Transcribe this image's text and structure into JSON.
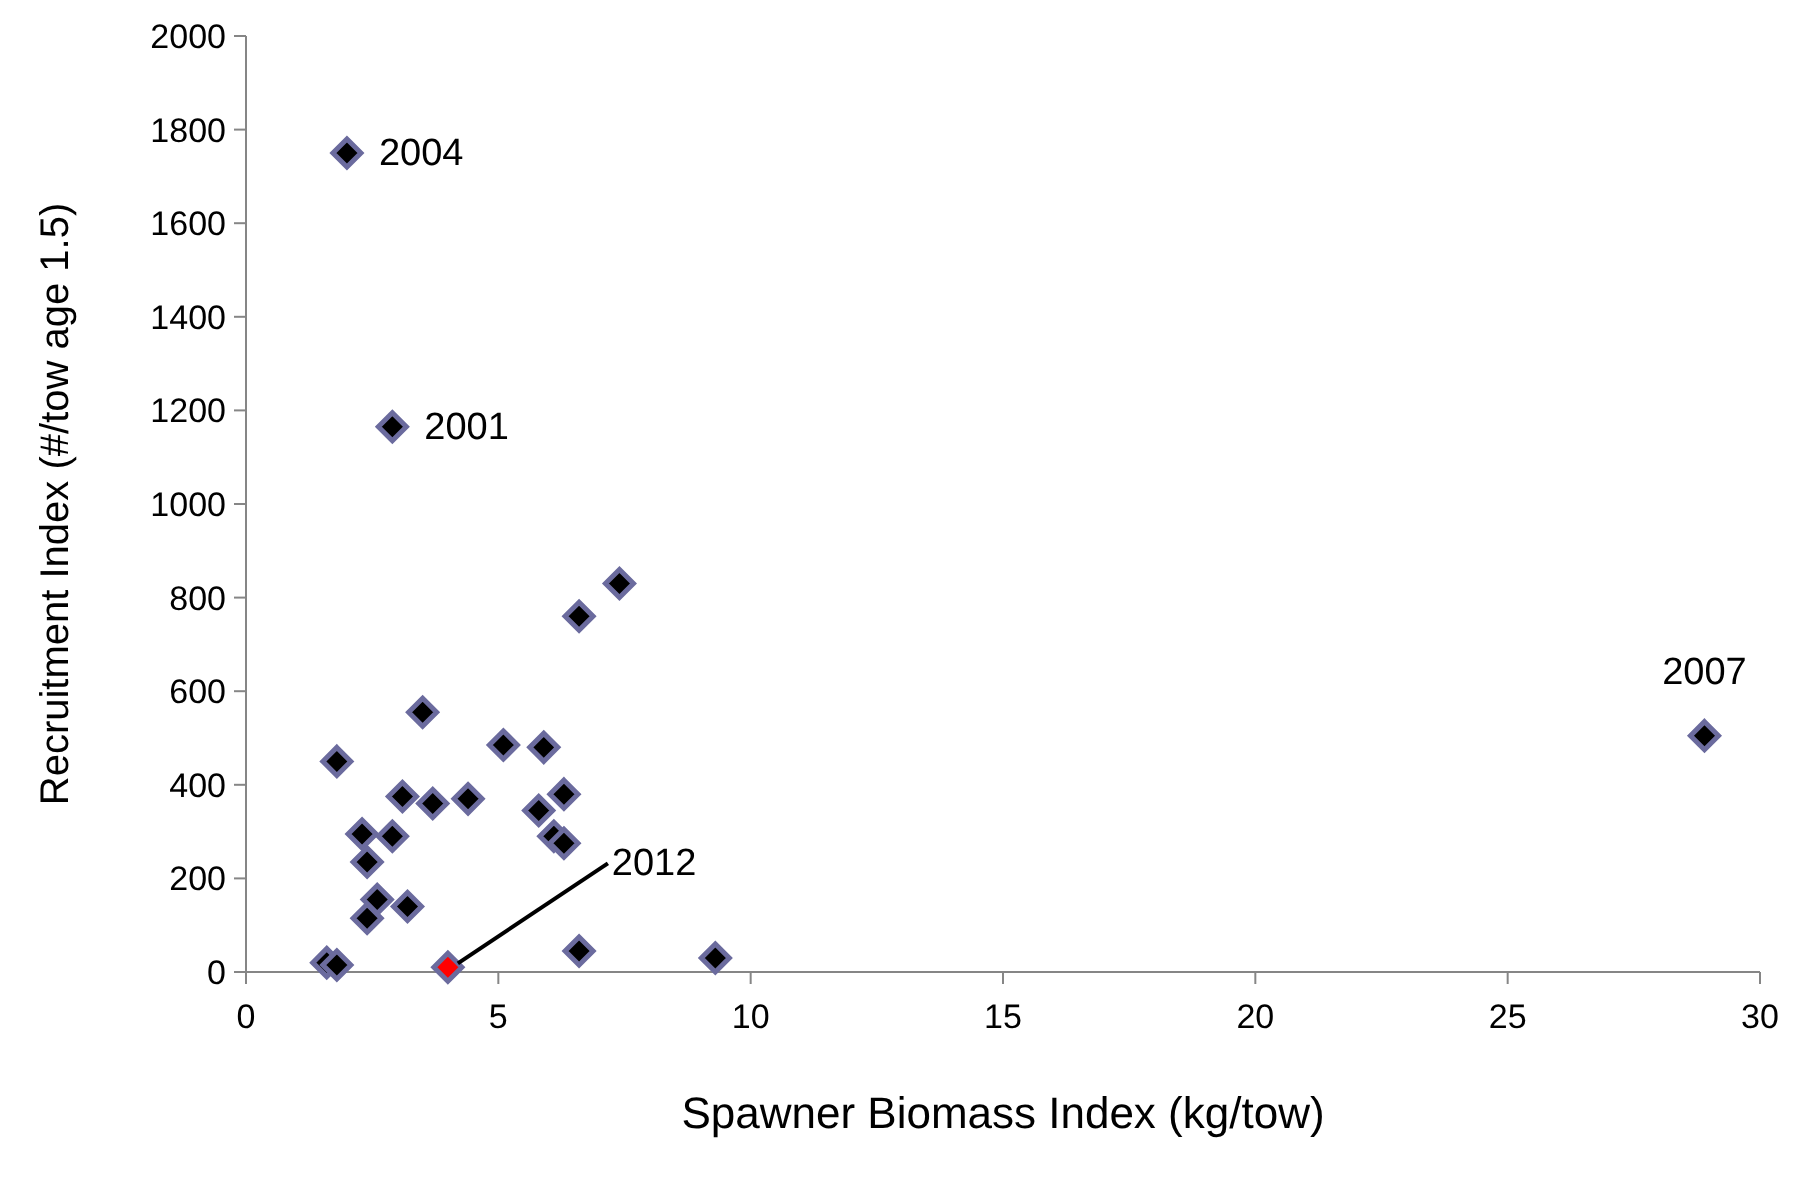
{
  "chart_data": {
    "type": "scatter",
    "xlabel": "Spawner Biomass Index (kg/tow)",
    "ylabel": "Recruitment Index (#/tow age 1.5)",
    "x": [
      2.0,
      2.9,
      28.9,
      7.4,
      6.6,
      3.5,
      1.8,
      5.1,
      5.9,
      3.1,
      3.7,
      4.4,
      6.3,
      5.8,
      6.1,
      6.3,
      2.3,
      2.9,
      2.4,
      2.6,
      2.4,
      3.2,
      1.6,
      1.8,
      4.0,
      6.6,
      9.3
    ],
    "values": [
      1750,
      1165,
      505,
      830,
      760,
      555,
      450,
      485,
      480,
      375,
      360,
      370,
      380,
      345,
      290,
      275,
      295,
      290,
      235,
      155,
      115,
      140,
      20,
      15,
      10,
      45,
      30
    ],
    "colors": [
      "#000000",
      "#000000",
      "#000000",
      "#000000",
      "#000000",
      "#000000",
      "#000000",
      "#000000",
      "#000000",
      "#000000",
      "#000000",
      "#000000",
      "#000000",
      "#000000",
      "#000000",
      "#000000",
      "#000000",
      "#000000",
      "#000000",
      "#000000",
      "#000000",
      "#000000",
      "#000000",
      "#000000",
      "#ff0000",
      "#000000",
      "#000000"
    ],
    "marker": "diamond",
    "xlim": [
      0,
      30
    ],
    "xticks": [
      0,
      5,
      10,
      15,
      20,
      25,
      30
    ],
    "ylim": [
      0,
      2000
    ],
    "yticks": [
      0,
      200,
      400,
      600,
      800,
      1000,
      1200,
      1400,
      1600,
      1800,
      2000
    ],
    "grid": false,
    "annotations": [
      {
        "text": "2004",
        "x": 2.0,
        "y": 1750
      },
      {
        "text": "2001",
        "x": 2.9,
        "y": 1165
      },
      {
        "text": "2007",
        "x": 28.9,
        "y": 505
      },
      {
        "text": "2012",
        "x": 4.0,
        "y": 10
      }
    ]
  }
}
